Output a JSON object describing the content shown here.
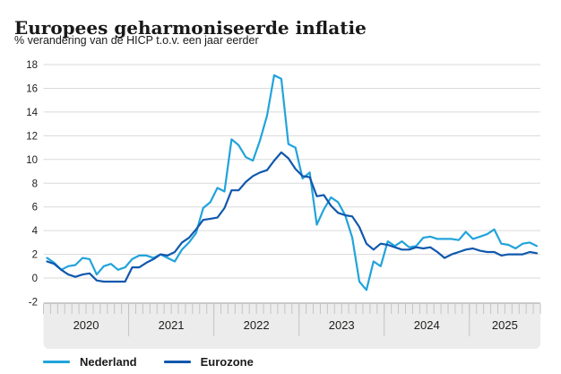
{
  "header": {
    "title": "Europees geharmoniseerde inflatie",
    "subtitle": "% verandering van de HICP t.o.v. een jaar eerder"
  },
  "chart_data": {
    "type": "line",
    "unit": "%",
    "x_start": "2020-01",
    "x_end": "2025-10",
    "x_frequency": "monthly",
    "year_labels": [
      "2020",
      "2021",
      "2022",
      "2023",
      "2024",
      "2025"
    ],
    "ylim": [
      -2,
      18
    ],
    "yticks": [
      18,
      16,
      14,
      12,
      10,
      8,
      6,
      4,
      2,
      0,
      -2
    ],
    "grid": true,
    "legend_position": "bottom-left",
    "series": [
      {
        "name": "Nederland",
        "color": "#22a3db",
        "values": [
          1.7,
          1.3,
          0.7,
          1.0,
          1.1,
          1.7,
          1.6,
          0.3,
          1.0,
          1.2,
          0.7,
          0.9,
          1.6,
          1.9,
          1.9,
          1.7,
          2.0,
          1.7,
          1.4,
          2.4,
          3.0,
          3.8,
          5.9,
          6.4,
          7.6,
          7.3,
          11.7,
          11.2,
          10.2,
          9.9,
          11.6,
          13.7,
          17.1,
          16.8,
          11.3,
          11.0,
          8.4,
          8.9,
          4.5,
          5.8,
          6.8,
          6.4,
          5.3,
          3.4,
          -0.3,
          -1.0,
          1.4,
          1.0,
          3.1,
          2.7,
          3.1,
          2.6,
          2.7,
          3.4,
          3.5,
          3.3,
          3.3,
          3.3,
          3.2,
          3.9,
          3.3,
          3.5,
          3.7,
          4.1,
          2.9,
          2.8,
          2.5,
          2.9,
          3.0,
          2.7
        ]
      },
      {
        "name": "Eurozone",
        "color": "#1058ad",
        "values": [
          1.4,
          1.2,
          0.7,
          0.3,
          0.1,
          0.3,
          0.4,
          -0.2,
          -0.3,
          -0.3,
          -0.3,
          -0.3,
          0.9,
          0.9,
          1.3,
          1.6,
          2.0,
          1.9,
          2.2,
          3.0,
          3.4,
          4.1,
          4.9,
          5.0,
          5.1,
          5.9,
          7.4,
          7.4,
          8.1,
          8.6,
          8.9,
          9.1,
          9.9,
          10.6,
          10.1,
          9.2,
          8.6,
          8.5,
          6.9,
          7.0,
          6.1,
          5.5,
          5.3,
          5.2,
          4.3,
          2.9,
          2.4,
          2.9,
          2.8,
          2.6,
          2.4,
          2.4,
          2.6,
          2.5,
          2.6,
          2.2,
          1.7,
          2.0,
          2.2,
          2.4,
          2.5,
          2.3,
          2.2,
          2.2,
          1.9,
          2.0,
          2.0,
          2.0,
          2.2,
          2.1
        ]
      }
    ],
    "colors": {
      "grid": "#dadada",
      "axis_band_fill": "#ececec",
      "axis_band_border": "#9e9e9e",
      "axis_ticks": "#c4c4c4",
      "axis_text": "#1d1d1b"
    }
  },
  "legend": {
    "items": [
      {
        "label": "Nederland"
      },
      {
        "label": "Eurozone"
      }
    ]
  }
}
